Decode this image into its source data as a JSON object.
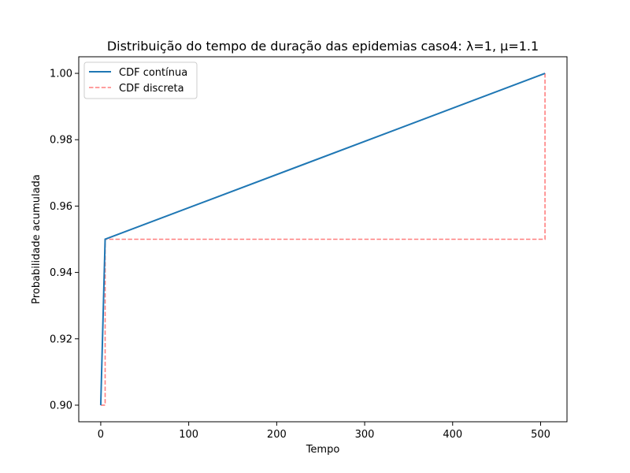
{
  "chart_data": {
    "type": "line",
    "title": "Distribuição do tempo de duração das epidemias caso4: λ=1, μ=1.1",
    "xlabel": "Tempo",
    "ylabel": "Probabilidade acumulada",
    "xlim": [
      -25,
      530
    ],
    "ylim": [
      0.895,
      1.005
    ],
    "xticks": [
      0,
      100,
      200,
      300,
      400,
      500
    ],
    "xtick_labels": [
      "0",
      "100",
      "200",
      "300",
      "400",
      "500"
    ],
    "yticks": [
      0.9,
      0.92,
      0.94,
      0.96,
      0.98,
      1.0
    ],
    "ytick_labels": [
      "0.90",
      "0.92",
      "0.94",
      "0.96",
      "0.98",
      "1.00"
    ],
    "grid": false,
    "legend_position": "top-left",
    "series": [
      {
        "name": "CDF contínua",
        "style": "solid",
        "color": "#1f77b4",
        "x": [
          0,
          5,
          505
        ],
        "y": [
          0.9,
          0.95,
          1.0
        ]
      },
      {
        "name": "CDF discreta",
        "style": "dashed",
        "color": "#ff7f7f",
        "x": [
          0,
          5,
          5,
          505,
          505
        ],
        "y": [
          0.9,
          0.9,
          0.95,
          0.95,
          1.0
        ]
      }
    ]
  }
}
